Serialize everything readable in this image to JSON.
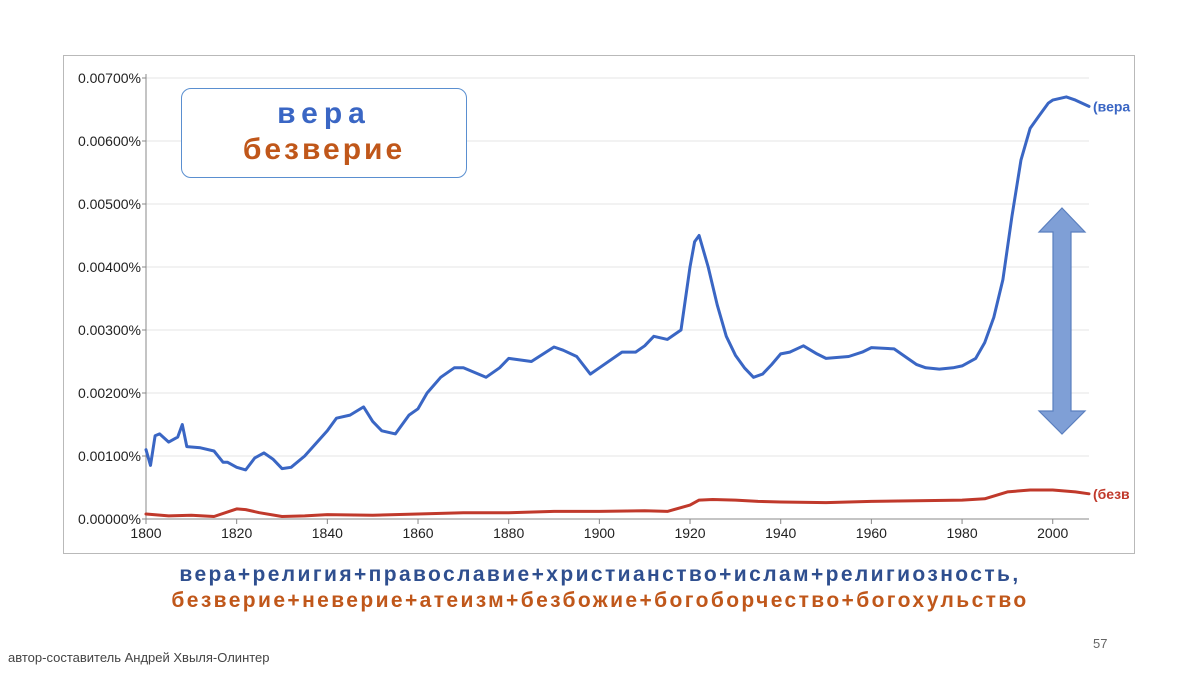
{
  "colors": {
    "series1": "#3a66c4",
    "series2": "#c0392b",
    "caption1": "#2f4f8f",
    "caption2": "#c0571a",
    "arrow": "#7f9fd6"
  },
  "legend_box": {
    "line1": "вера",
    "line2": "безверие"
  },
  "captions": {
    "line1": "вера+религия+православие+христианство+ислам+религиозность,",
    "line2": "безверие+неверие+атеизм+безбожие+богоборчество+богохульство"
  },
  "page_number": "57",
  "author": "автор-составитель Андрей Хвыля-Олинтер",
  "chart_data": {
    "type": "line",
    "title": "",
    "xlabel": "",
    "ylabel": "",
    "xlim": [
      1800,
      2008
    ],
    "ylim": [
      0,
      0.007
    ],
    "x_ticks": [
      "1800",
      "1820",
      "1840",
      "1860",
      "1880",
      "1900",
      "1920",
      "1940",
      "1960",
      "1980",
      "2000"
    ],
    "y_ticks": [
      "0.00000%",
      "0.00100%",
      "0.00200%",
      "0.00300%",
      "0.00400%",
      "0.00500%",
      "0.00600%",
      "0.00700%"
    ],
    "grid": "horizontal",
    "series": [
      {
        "name": "(вера",
        "x": [
          1800,
          1801,
          1802,
          1803,
          1805,
          1807,
          1808,
          1809,
          1812,
          1815,
          1817,
          1818,
          1820,
          1822,
          1824,
          1826,
          1828,
          1830,
          1832,
          1835,
          1840,
          1842,
          1845,
          1848,
          1850,
          1852,
          1855,
          1858,
          1860,
          1862,
          1865,
          1868,
          1870,
          1875,
          1878,
          1880,
          1885,
          1890,
          1892,
          1895,
          1898,
          1900,
          1905,
          1908,
          1910,
          1912,
          1915,
          1918,
          1920,
          1921,
          1922,
          1924,
          1926,
          1928,
          1930,
          1932,
          1934,
          1936,
          1938,
          1940,
          1942,
          1945,
          1948,
          1950,
          1955,
          1958,
          1960,
          1965,
          1968,
          1970,
          1972,
          1975,
          1978,
          1980,
          1983,
          1985,
          1987,
          1989,
          1991,
          1993,
          1995,
          1997,
          1999,
          2000,
          2003,
          2005,
          2008
        ],
        "values": [
          0.0011,
          0.00085,
          0.00132,
          0.00135,
          0.00122,
          0.0013,
          0.0015,
          0.00115,
          0.00113,
          0.00108,
          0.0009,
          0.0009,
          0.00082,
          0.00078,
          0.00097,
          0.00105,
          0.00095,
          0.0008,
          0.00082,
          0.001,
          0.0014,
          0.0016,
          0.00165,
          0.00178,
          0.00155,
          0.0014,
          0.00135,
          0.00165,
          0.00175,
          0.002,
          0.00225,
          0.0024,
          0.0024,
          0.00225,
          0.0024,
          0.00255,
          0.0025,
          0.00273,
          0.00268,
          0.00258,
          0.0023,
          0.0024,
          0.00265,
          0.00265,
          0.00275,
          0.0029,
          0.00285,
          0.003,
          0.004,
          0.0044,
          0.0045,
          0.004,
          0.0034,
          0.0029,
          0.0026,
          0.0024,
          0.00225,
          0.0023,
          0.00245,
          0.00262,
          0.00265,
          0.00275,
          0.00262,
          0.00255,
          0.00258,
          0.00265,
          0.00272,
          0.0027,
          0.00255,
          0.00245,
          0.0024,
          0.00238,
          0.0024,
          0.00243,
          0.00255,
          0.0028,
          0.0032,
          0.0038,
          0.0048,
          0.0057,
          0.0062,
          0.0064,
          0.0066,
          0.00665,
          0.0067,
          0.00665,
          0.00655
        ]
      },
      {
        "name": "(безв",
        "x": [
          1800,
          1805,
          1810,
          1815,
          1820,
          1822,
          1825,
          1830,
          1835,
          1840,
          1850,
          1860,
          1870,
          1880,
          1890,
          1900,
          1910,
          1915,
          1920,
          1922,
          1925,
          1930,
          1935,
          1940,
          1950,
          1960,
          1970,
          1980,
          1985,
          1990,
          1995,
          2000,
          2005,
          2008
        ],
        "values": [
          8e-05,
          5e-05,
          6e-05,
          4e-05,
          0.00016,
          0.00015,
          0.0001,
          4e-05,
          5e-05,
          7e-05,
          6e-05,
          8e-05,
          0.0001,
          0.0001,
          0.00012,
          0.00012,
          0.00013,
          0.00012,
          0.00022,
          0.0003,
          0.00031,
          0.0003,
          0.00028,
          0.00027,
          0.00026,
          0.00028,
          0.00029,
          0.0003,
          0.00032,
          0.00043,
          0.00046,
          0.00046,
          0.00043,
          0.0004
        ]
      }
    ]
  }
}
